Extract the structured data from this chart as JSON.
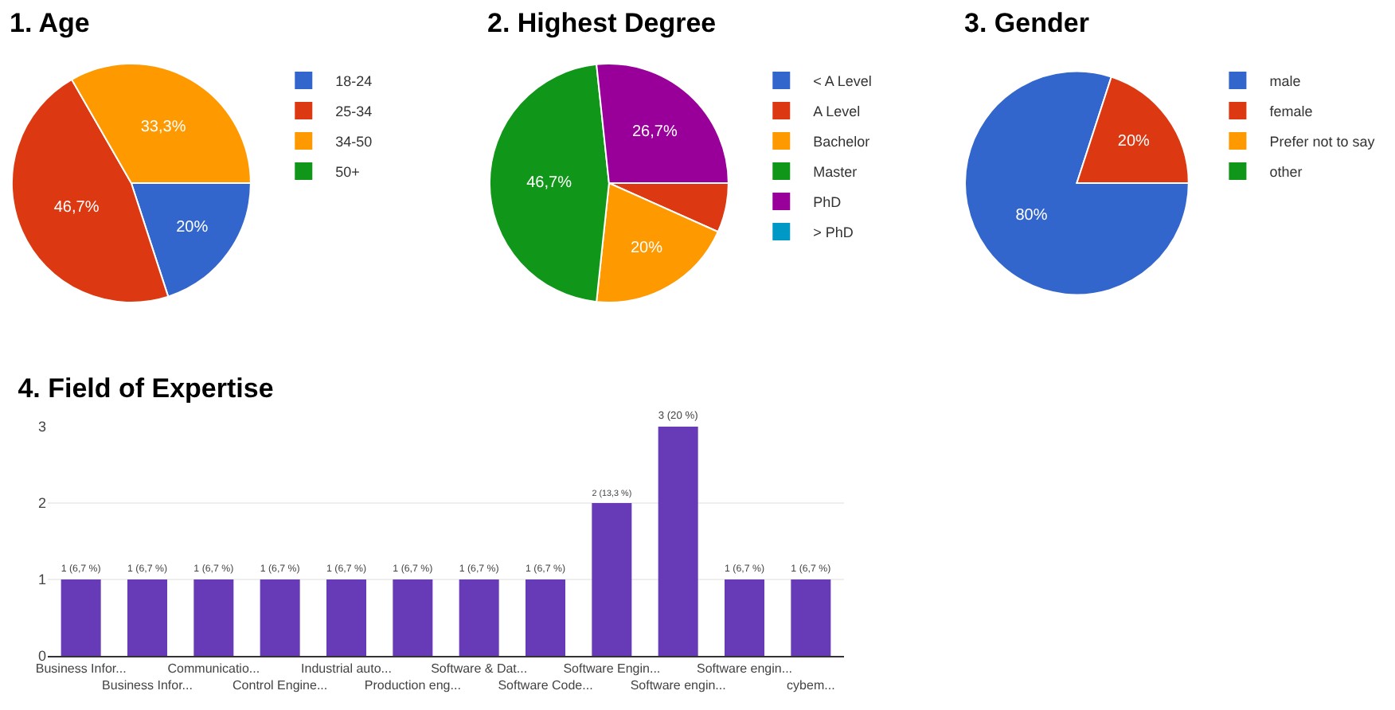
{
  "chart_data": [
    {
      "type": "pie",
      "title": "1. Age",
      "categories": [
        "18-24",
        "25-34",
        "34-50",
        "50+"
      ],
      "values": [
        20,
        46.7,
        33.3,
        0
      ],
      "colors": [
        "#3366cc",
        "#dc3912",
        "#ff9900",
        "#109618"
      ],
      "value_labels": [
        "20%",
        "46,7%",
        "33,3%",
        null
      ],
      "legend": "right"
    },
    {
      "type": "pie",
      "title": "2. Highest Degree",
      "categories": [
        "< A Level",
        "A Level",
        "Bachelor",
        "Master",
        "PhD",
        "> PhD"
      ],
      "values": [
        0,
        6.7,
        20,
        46.7,
        26.7,
        0
      ],
      "colors": [
        "#3366cc",
        "#dc3912",
        "#ff9900",
        "#109618",
        "#990099",
        "#0099c6"
      ],
      "value_labels": [
        null,
        null,
        "20%",
        "46,7%",
        "26,7%",
        null
      ],
      "legend": "right"
    },
    {
      "type": "pie",
      "title": "3. Gender",
      "categories": [
        "male",
        "female",
        "Prefer not to say",
        "other"
      ],
      "values": [
        80,
        20,
        0,
        0
      ],
      "colors": [
        "#3366cc",
        "#dc3912",
        "#ff9900",
        "#109618"
      ],
      "value_labels": [
        "80%",
        "20%",
        null,
        null
      ],
      "legend": "right"
    },
    {
      "type": "bar",
      "title": "4. Field of Expertise",
      "categories": [
        "Business Infor...",
        "Business Infor...",
        "Communicatio...",
        "Control Engine...",
        "Industrial auto...",
        "Production eng...",
        "Software & Dat...",
        "Software Code...",
        "Software Engin...",
        "Software engin...",
        "Software engin...",
        "cybem..."
      ],
      "values": [
        1,
        1,
        1,
        1,
        1,
        1,
        1,
        1,
        2,
        3,
        1,
        1
      ],
      "color": "#673ab7",
      "value_labels": [
        "1 (6,7 %)",
        "1 (6,7 %)",
        "1 (6,7 %)",
        "1 (6,7 %)",
        "1 (6,7 %)",
        "1 (6,7 %)",
        "1 (6,7 %)",
        "1 (6,7 %)",
        "2 (13,3 %)",
        "3 (20 %)",
        "1 (6,7 %)",
        "1 (6,7 %)"
      ],
      "ylim": [
        0,
        3
      ],
      "yticks": [
        0,
        1,
        2,
        3
      ],
      "grid": "y"
    }
  ]
}
